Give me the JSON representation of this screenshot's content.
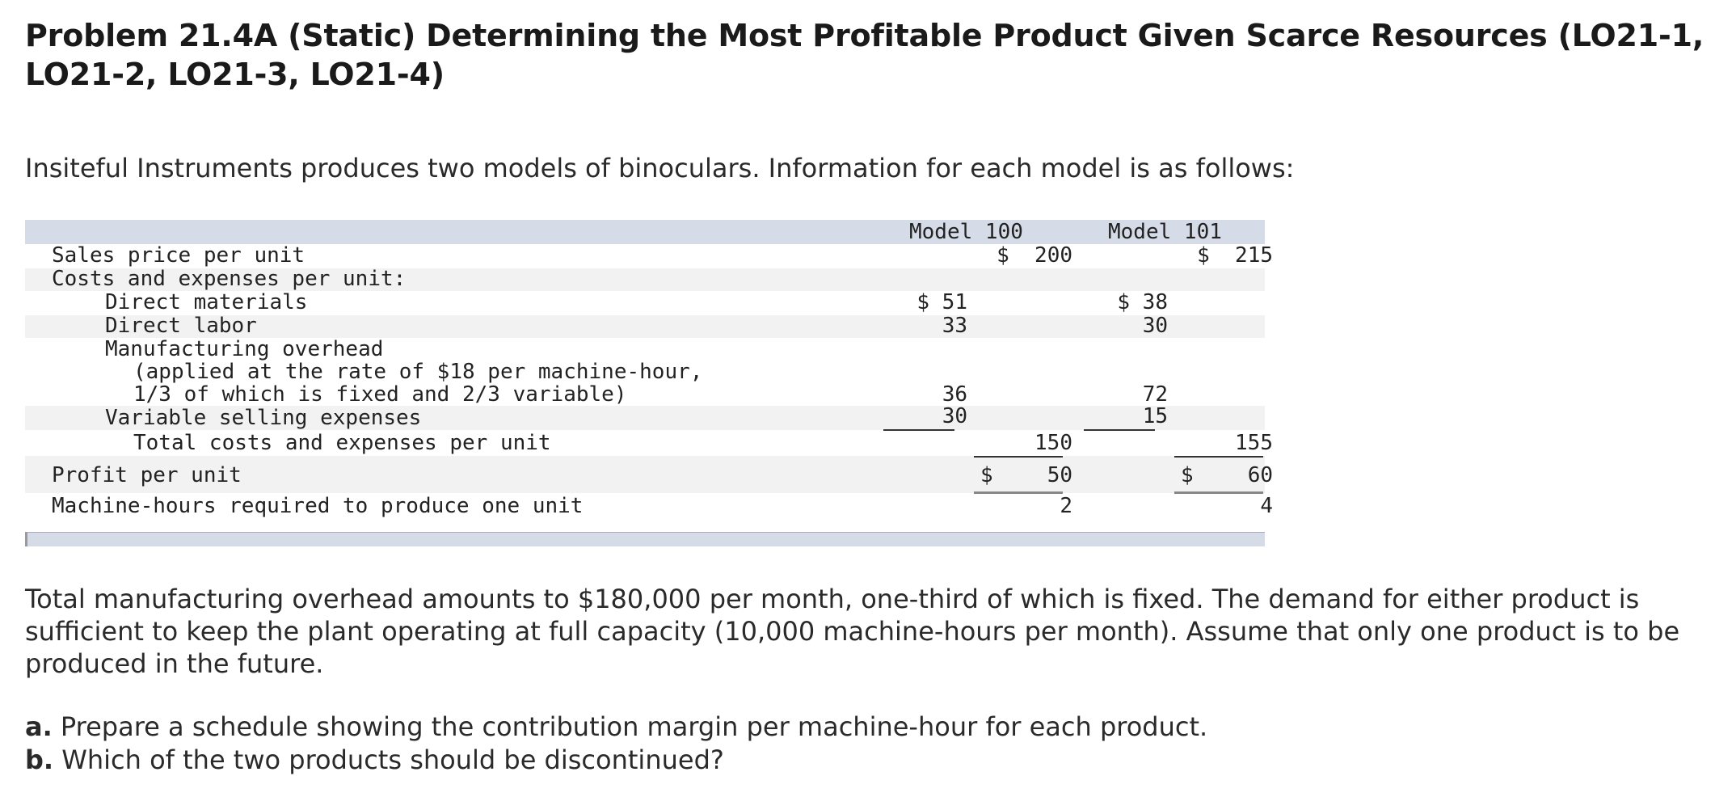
{
  "title": "Problem 21.4A (Static) Determining the Most Profitable Product Given Scarce Resources (LO21-1, LO21-2, LO21-3, LO21-4)",
  "intro": "Insiteful Instruments produces two models of binoculars. Information for each model is as follows:",
  "table": {
    "headers": {
      "model_100": "Model 100",
      "model_101": "Model 101"
    },
    "rows": {
      "sales_price": {
        "label": "Sales price per unit",
        "m100_total": "$  200",
        "m101_total": "$  215"
      },
      "costs_header": {
        "label": "Costs and expenses per unit:"
      },
      "direct_materials": {
        "label": "Direct materials",
        "m100_detail": "$ 51",
        "m101_detail": "$ 38"
      },
      "direct_labor": {
        "label": "Direct labor",
        "m100_detail": "33",
        "m101_detail": "30"
      },
      "overhead": {
        "label_1": "Manufacturing overhead",
        "label_2": "(applied at the rate of $18 per machine-hour,",
        "label_3": "1/3 of which is fixed and 2/3 variable)",
        "m100_detail": "36",
        "m101_detail": "72"
      },
      "variable_selling": {
        "label": "Variable selling expenses",
        "m100_detail": "30",
        "m101_detail": "15"
      },
      "total_costs": {
        "label": "Total costs and expenses per unit",
        "m100_total": "150",
        "m101_total": "155"
      },
      "profit": {
        "label": "Profit per unit",
        "m100_currency": "$",
        "m100_total": "50",
        "m101_currency": "$",
        "m101_total": "60"
      },
      "machine_hours": {
        "label": "Machine-hours required to produce one unit",
        "m100_total": "2",
        "m101_total": "4"
      }
    }
  },
  "narrative": "Total manufacturing overhead amounts to $180,000 per month, one-third of which is fixed. The demand for either product is sufficient to keep the plant operating at full capacity (10,000 machine-hours per month). Assume that only one product is to be produced in the future.",
  "questions": {
    "a_label": "a.",
    "a_text": " Prepare a schedule showing the contribution margin per machine-hour for each product.",
    "b_label": "b.",
    "b_text": " Which of the two products should be discontinued?"
  }
}
